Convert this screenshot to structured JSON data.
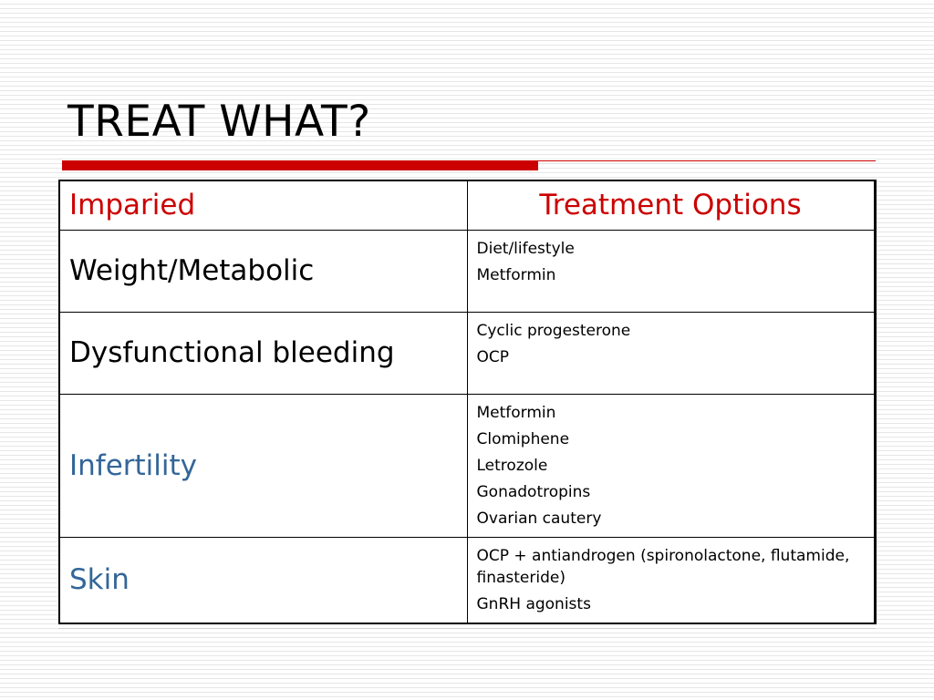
{
  "slide": {
    "title": "TREAT WHAT?",
    "accent_color": "#cc0000",
    "link_color": "#336699"
  },
  "table": {
    "header": {
      "left": "Imparied",
      "right": "Treatment Options"
    },
    "rows": [
      {
        "condition": "Weight/Metabolic",
        "options": [
          "Diet/lifestyle",
          "Metformin"
        ]
      },
      {
        "condition": "Dysfunctional bleeding",
        "options": [
          "Cyclic progesterone",
          "OCP"
        ]
      },
      {
        "condition": "Infertility",
        "options": [
          "Metformin",
          "Clomiphene",
          "Letrozole",
          "Gonadotropins",
          "Ovarian cautery"
        ]
      },
      {
        "condition": "Skin",
        "options": [
          "OCP + antiandrogen (spironolactone, flutamide, finasteride)",
          "GnRH agonists"
        ]
      }
    ]
  }
}
